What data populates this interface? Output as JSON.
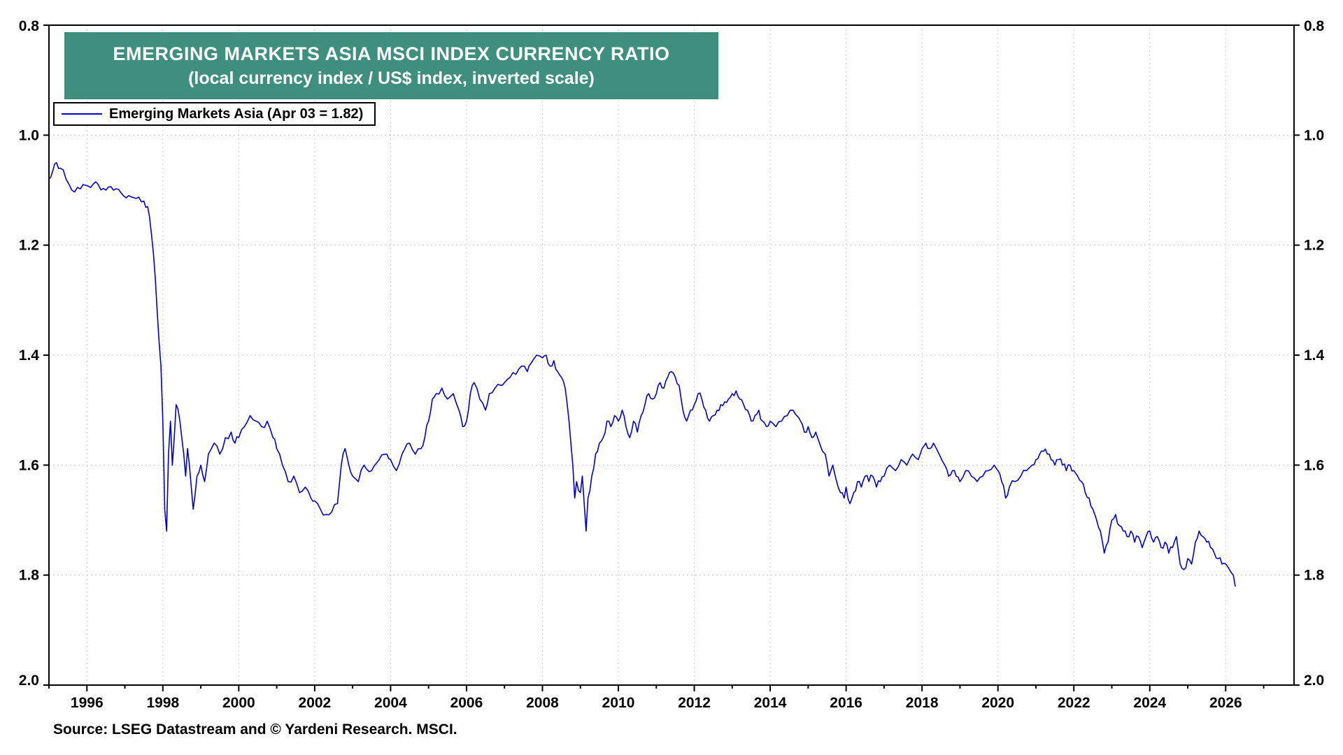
{
  "title": {
    "line1": "EMERGING MARKETS ASIA MSCI INDEX CURRENCY RATIO",
    "line2": "(local currency index / US$ index, inverted scale)"
  },
  "legend": {
    "label": "Emerging Markets Asia (Apr 03 = 1.82)"
  },
  "source": "Source: LSEG Datastream and © Yardeni Research. MSCI.",
  "colors": {
    "line": "#0000cc",
    "title_bg": "#3f8f7f",
    "title_text": "#ffffff",
    "grid": "#c9c9c9",
    "axis": "#000000"
  },
  "chart_data": {
    "type": "line",
    "title": "EMERGING MARKETS ASIA MSCI INDEX CURRENCY RATIO",
    "subtitle": "(local currency index / US$ index, inverted scale)",
    "xlabel": "",
    "ylabel": "",
    "x_domain": [
      1995.0,
      2027.8
    ],
    "y_domain": [
      0.8,
      2.0
    ],
    "y_inverted": true,
    "grid": true,
    "legend_position": "top-left",
    "x_ticks_labeled": [
      1996,
      1998,
      2000,
      2002,
      2004,
      2006,
      2008,
      2010,
      2012,
      2014,
      2016,
      2018,
      2020,
      2022,
      2024,
      2026
    ],
    "y_ticks": [
      0.8,
      1.0,
      1.2,
      1.4,
      1.6,
      1.8,
      2.0
    ],
    "series": [
      {
        "name": "Emerging Markets Asia",
        "annotation": "Apr 03 = 1.82",
        "points": [
          [
            1995.0,
            1.08
          ],
          [
            1995.1,
            1.065
          ],
          [
            1995.2,
            1.05
          ],
          [
            1995.3,
            1.06
          ],
          [
            1995.45,
            1.08
          ],
          [
            1995.6,
            1.1
          ],
          [
            1995.75,
            1.095
          ],
          [
            1995.9,
            1.09
          ],
          [
            1996.1,
            1.095
          ],
          [
            1996.3,
            1.09
          ],
          [
            1996.5,
            1.1
          ],
          [
            1996.7,
            1.1
          ],
          [
            1996.9,
            1.105
          ],
          [
            1997.1,
            1.11
          ],
          [
            1997.3,
            1.115
          ],
          [
            1997.5,
            1.12
          ],
          [
            1997.6,
            1.13
          ],
          [
            1997.7,
            1.18
          ],
          [
            1997.8,
            1.26
          ],
          [
            1997.85,
            1.32
          ],
          [
            1997.95,
            1.42
          ],
          [
            1998.0,
            1.52
          ],
          [
            1998.05,
            1.68
          ],
          [
            1998.1,
            1.72
          ],
          [
            1998.15,
            1.58
          ],
          [
            1998.2,
            1.52
          ],
          [
            1998.25,
            1.6
          ],
          [
            1998.3,
            1.55
          ],
          [
            1998.35,
            1.49
          ],
          [
            1998.45,
            1.52
          ],
          [
            1998.55,
            1.58
          ],
          [
            1998.6,
            1.62
          ],
          [
            1998.65,
            1.57
          ],
          [
            1998.7,
            1.6
          ],
          [
            1998.8,
            1.68
          ],
          [
            1998.9,
            1.62
          ],
          [
            1999.0,
            1.6
          ],
          [
            1999.1,
            1.63
          ],
          [
            1999.2,
            1.58
          ],
          [
            1999.35,
            1.56
          ],
          [
            1999.5,
            1.58
          ],
          [
            1999.65,
            1.55
          ],
          [
            1999.8,
            1.54
          ],
          [
            1999.9,
            1.56
          ],
          [
            2000.0,
            1.55
          ],
          [
            2000.15,
            1.53
          ],
          [
            2000.3,
            1.51
          ],
          [
            2000.45,
            1.52
          ],
          [
            2000.6,
            1.53
          ],
          [
            2000.75,
            1.52
          ],
          [
            2000.9,
            1.55
          ],
          [
            2001.0,
            1.57
          ],
          [
            2001.15,
            1.6
          ],
          [
            2001.3,
            1.63
          ],
          [
            2001.45,
            1.62
          ],
          [
            2001.6,
            1.65
          ],
          [
            2001.75,
            1.64
          ],
          [
            2001.9,
            1.66
          ],
          [
            2002.0,
            1.665
          ],
          [
            2002.15,
            1.68
          ],
          [
            2002.3,
            1.69
          ],
          [
            2002.45,
            1.685
          ],
          [
            2002.6,
            1.67
          ],
          [
            2002.7,
            1.6
          ],
          [
            2002.8,
            1.57
          ],
          [
            2002.9,
            1.6
          ],
          [
            2003.0,
            1.62
          ],
          [
            2003.15,
            1.63
          ],
          [
            2003.3,
            1.6
          ],
          [
            2003.5,
            1.61
          ],
          [
            2003.7,
            1.59
          ],
          [
            2003.9,
            1.58
          ],
          [
            2004.0,
            1.59
          ],
          [
            2004.15,
            1.61
          ],
          [
            2004.3,
            1.58
          ],
          [
            2004.5,
            1.56
          ],
          [
            2004.65,
            1.58
          ],
          [
            2004.8,
            1.57
          ],
          [
            2004.9,
            1.55
          ],
          [
            2005.0,
            1.52
          ],
          [
            2005.1,
            1.48
          ],
          [
            2005.2,
            1.47
          ],
          [
            2005.35,
            1.46
          ],
          [
            2005.5,
            1.48
          ],
          [
            2005.65,
            1.47
          ],
          [
            2005.8,
            1.5
          ],
          [
            2005.9,
            1.53
          ],
          [
            2006.0,
            1.52
          ],
          [
            2006.1,
            1.47
          ],
          [
            2006.2,
            1.45
          ],
          [
            2006.35,
            1.48
          ],
          [
            2006.5,
            1.5
          ],
          [
            2006.6,
            1.47
          ],
          [
            2006.75,
            1.46
          ],
          [
            2006.9,
            1.455
          ],
          [
            2007.0,
            1.45
          ],
          [
            2007.15,
            1.44
          ],
          [
            2007.3,
            1.435
          ],
          [
            2007.45,
            1.42
          ],
          [
            2007.6,
            1.43
          ],
          [
            2007.7,
            1.415
          ],
          [
            2007.85,
            1.4
          ],
          [
            2008.0,
            1.405
          ],
          [
            2008.1,
            1.4
          ],
          [
            2008.2,
            1.42
          ],
          [
            2008.3,
            1.41
          ],
          [
            2008.4,
            1.43
          ],
          [
            2008.5,
            1.44
          ],
          [
            2008.6,
            1.46
          ],
          [
            2008.7,
            1.52
          ],
          [
            2008.8,
            1.6
          ],
          [
            2008.85,
            1.66
          ],
          [
            2008.9,
            1.63
          ],
          [
            2009.0,
            1.65
          ],
          [
            2009.05,
            1.62
          ],
          [
            2009.1,
            1.67
          ],
          [
            2009.15,
            1.72
          ],
          [
            2009.2,
            1.66
          ],
          [
            2009.3,
            1.62
          ],
          [
            2009.4,
            1.58
          ],
          [
            2009.5,
            1.56
          ],
          [
            2009.6,
            1.55
          ],
          [
            2009.7,
            1.52
          ],
          [
            2009.8,
            1.53
          ],
          [
            2009.9,
            1.51
          ],
          [
            2010.0,
            1.52
          ],
          [
            2010.1,
            1.5
          ],
          [
            2010.2,
            1.53
          ],
          [
            2010.3,
            1.55
          ],
          [
            2010.4,
            1.52
          ],
          [
            2010.5,
            1.54
          ],
          [
            2010.6,
            1.51
          ],
          [
            2010.7,
            1.49
          ],
          [
            2010.8,
            1.47
          ],
          [
            2010.9,
            1.48
          ],
          [
            2011.0,
            1.47
          ],
          [
            2011.1,
            1.45
          ],
          [
            2011.2,
            1.46
          ],
          [
            2011.3,
            1.44
          ],
          [
            2011.4,
            1.43
          ],
          [
            2011.5,
            1.44
          ],
          [
            2011.6,
            1.455
          ],
          [
            2011.7,
            1.5
          ],
          [
            2011.8,
            1.52
          ],
          [
            2011.9,
            1.5
          ],
          [
            2012.0,
            1.49
          ],
          [
            2012.1,
            1.47
          ],
          [
            2012.2,
            1.48
          ],
          [
            2012.3,
            1.5
          ],
          [
            2012.4,
            1.52
          ],
          [
            2012.5,
            1.51
          ],
          [
            2012.6,
            1.5
          ],
          [
            2012.7,
            1.49
          ],
          [
            2012.8,
            1.485
          ],
          [
            2012.9,
            1.48
          ],
          [
            2013.0,
            1.47
          ],
          [
            2013.1,
            1.465
          ],
          [
            2013.2,
            1.48
          ],
          [
            2013.3,
            1.49
          ],
          [
            2013.4,
            1.5
          ],
          [
            2013.5,
            1.52
          ],
          [
            2013.6,
            1.51
          ],
          [
            2013.7,
            1.5
          ],
          [
            2013.8,
            1.52
          ],
          [
            2013.9,
            1.53
          ],
          [
            2014.0,
            1.52
          ],
          [
            2014.15,
            1.53
          ],
          [
            2014.3,
            1.52
          ],
          [
            2014.45,
            1.51
          ],
          [
            2014.6,
            1.5
          ],
          [
            2014.7,
            1.51
          ],
          [
            2014.8,
            1.52
          ],
          [
            2014.9,
            1.54
          ],
          [
            2015.0,
            1.53
          ],
          [
            2015.1,
            1.55
          ],
          [
            2015.2,
            1.54
          ],
          [
            2015.3,
            1.56
          ],
          [
            2015.45,
            1.58
          ],
          [
            2015.55,
            1.62
          ],
          [
            2015.65,
            1.6
          ],
          [
            2015.75,
            1.63
          ],
          [
            2015.85,
            1.65
          ],
          [
            2015.95,
            1.66
          ],
          [
            2016.0,
            1.64
          ],
          [
            2016.1,
            1.67
          ],
          [
            2016.2,
            1.65
          ],
          [
            2016.3,
            1.63
          ],
          [
            2016.4,
            1.64
          ],
          [
            2016.5,
            1.62
          ],
          [
            2016.6,
            1.63
          ],
          [
            2016.7,
            1.62
          ],
          [
            2016.8,
            1.64
          ],
          [
            2016.9,
            1.63
          ],
          [
            2017.0,
            1.62
          ],
          [
            2017.15,
            1.6
          ],
          [
            2017.3,
            1.61
          ],
          [
            2017.45,
            1.59
          ],
          [
            2017.6,
            1.6
          ],
          [
            2017.75,
            1.58
          ],
          [
            2017.9,
            1.59
          ],
          [
            2018.0,
            1.57
          ],
          [
            2018.1,
            1.56
          ],
          [
            2018.2,
            1.57
          ],
          [
            2018.3,
            1.56
          ],
          [
            2018.45,
            1.58
          ],
          [
            2018.6,
            1.6
          ],
          [
            2018.7,
            1.62
          ],
          [
            2018.8,
            1.61
          ],
          [
            2018.9,
            1.62
          ],
          [
            2019.0,
            1.63
          ],
          [
            2019.15,
            1.61
          ],
          [
            2019.3,
            1.62
          ],
          [
            2019.45,
            1.63
          ],
          [
            2019.6,
            1.62
          ],
          [
            2019.75,
            1.61
          ],
          [
            2019.9,
            1.6
          ],
          [
            2020.0,
            1.61
          ],
          [
            2020.1,
            1.63
          ],
          [
            2020.2,
            1.66
          ],
          [
            2020.3,
            1.64
          ],
          [
            2020.45,
            1.63
          ],
          [
            2020.6,
            1.62
          ],
          [
            2020.75,
            1.61
          ],
          [
            2020.9,
            1.6
          ],
          [
            2021.0,
            1.59
          ],
          [
            2021.1,
            1.58
          ],
          [
            2021.2,
            1.575
          ],
          [
            2021.3,
            1.58
          ],
          [
            2021.4,
            1.59
          ],
          [
            2021.5,
            1.6
          ],
          [
            2021.6,
            1.59
          ],
          [
            2021.7,
            1.6
          ],
          [
            2021.8,
            1.61
          ],
          [
            2021.9,
            1.6
          ],
          [
            2022.0,
            1.61
          ],
          [
            2022.1,
            1.62
          ],
          [
            2022.2,
            1.63
          ],
          [
            2022.3,
            1.65
          ],
          [
            2022.4,
            1.66
          ],
          [
            2022.5,
            1.68
          ],
          [
            2022.6,
            1.7
          ],
          [
            2022.7,
            1.72
          ],
          [
            2022.8,
            1.76
          ],
          [
            2022.9,
            1.74
          ],
          [
            2023.0,
            1.7
          ],
          [
            2023.1,
            1.69
          ],
          [
            2023.2,
            1.71
          ],
          [
            2023.3,
            1.72
          ],
          [
            2023.4,
            1.73
          ],
          [
            2023.5,
            1.72
          ],
          [
            2023.6,
            1.74
          ],
          [
            2023.7,
            1.73
          ],
          [
            2023.8,
            1.75
          ],
          [
            2023.9,
            1.73
          ],
          [
            2024.0,
            1.72
          ],
          [
            2024.1,
            1.74
          ],
          [
            2024.2,
            1.73
          ],
          [
            2024.3,
            1.75
          ],
          [
            2024.4,
            1.74
          ],
          [
            2024.5,
            1.76
          ],
          [
            2024.6,
            1.75
          ],
          [
            2024.7,
            1.73
          ],
          [
            2024.8,
            1.78
          ],
          [
            2024.9,
            1.79
          ],
          [
            2025.0,
            1.77
          ],
          [
            2025.1,
            1.78
          ],
          [
            2025.2,
            1.74
          ],
          [
            2025.3,
            1.72
          ],
          [
            2025.4,
            1.73
          ],
          [
            2025.5,
            1.74
          ],
          [
            2025.6,
            1.75
          ],
          [
            2025.7,
            1.76
          ],
          [
            2025.8,
            1.77
          ],
          [
            2025.9,
            1.78
          ],
          [
            2026.0,
            1.78
          ],
          [
            2026.1,
            1.79
          ],
          [
            2026.2,
            1.8
          ],
          [
            2026.25,
            1.82
          ]
        ]
      }
    ]
  }
}
